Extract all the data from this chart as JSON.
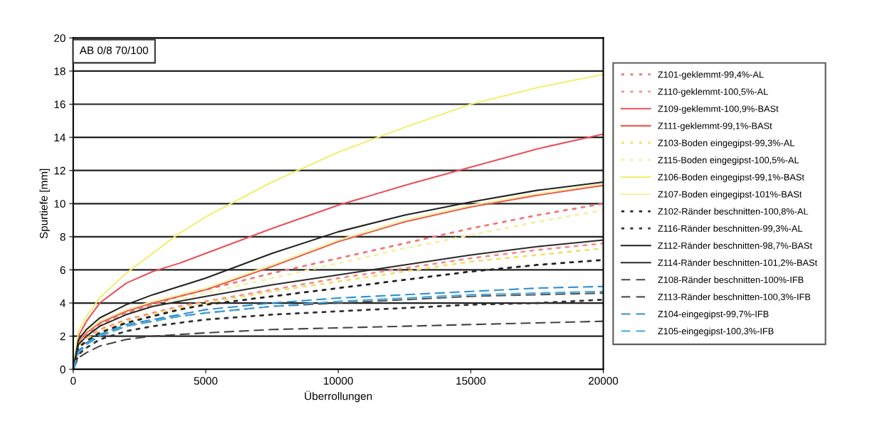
{
  "chart_data": {
    "type": "line",
    "xlabel": "Überrollungen",
    "ylabel": "Spurtiefe [mm]",
    "annotations": [
      "AB 0/8 70/100"
    ],
    "x": [
      0,
      200,
      500,
      1000,
      2000,
      3000,
      4000,
      5000,
      7500,
      10000,
      12500,
      15000,
      17500,
      20000
    ],
    "xlim": [
      0,
      20000
    ],
    "xticks": [
      0,
      5000,
      10000,
      15000,
      20000
    ],
    "ylim": [
      0,
      20
    ],
    "yticks": [
      0,
      2,
      4,
      6,
      8,
      10,
      12,
      14,
      16,
      18,
      20
    ],
    "grid": "y",
    "legend": "right",
    "marker": "none",
    "series": [
      {
        "name": "Z101-geklemmt-99,4%-AL",
        "color": "#f07878",
        "line_style": "dotted",
        "values": [
          0,
          1.6,
          2.1,
          2.7,
          3.4,
          3.9,
          4.4,
          4.8,
          5.8,
          6.7,
          7.6,
          8.5,
          9.3,
          10.0
        ]
      },
      {
        "name": "Z110-geklemmt-100,5%-AL",
        "color": "#f49090",
        "line_style": "dotted",
        "values": [
          0,
          1.4,
          1.9,
          2.4,
          3.0,
          3.4,
          3.8,
          4.1,
          4.8,
          5.5,
          6.1,
          6.7,
          7.2,
          7.6
        ]
      },
      {
        "name": "Z109-geklemmt-100,9%-BASt",
        "color": "#e85058",
        "line_style": "solid",
        "values": [
          0,
          2.0,
          2.9,
          4.0,
          5.2,
          5.9,
          6.4,
          7.0,
          8.5,
          9.9,
          11.1,
          12.2,
          13.3,
          14.2
        ]
      },
      {
        "name": "Z111-geklemmt-99,1%-BASt",
        "color": "#e86050",
        "line_style": "solid",
        "values": [
          0,
          1.7,
          2.2,
          2.8,
          3.5,
          4.0,
          4.4,
          4.8,
          6.2,
          7.7,
          8.9,
          9.8,
          10.5,
          11.1
        ]
      },
      {
        "name": "Z103-Boden eingegipst-99,3%-AL",
        "color": "#f0e070",
        "line_style": "dotted",
        "values": [
          0,
          1.3,
          1.8,
          2.3,
          2.9,
          3.3,
          3.7,
          4.0,
          4.7,
          5.3,
          5.9,
          6.5,
          6.9,
          7.3
        ]
      },
      {
        "name": "Z115-Boden eingegipst-100,5%-AL",
        "color": "#f4f0a0",
        "line_style": "dotted",
        "values": [
          0,
          1.5,
          2.0,
          2.6,
          3.3,
          3.8,
          4.2,
          4.6,
          5.5,
          6.4,
          7.3,
          8.1,
          8.9,
          9.6
        ]
      },
      {
        "name": "Z106-Boden eingegipst-99,1%-BASt",
        "color": "#f0f070",
        "line_style": "solid",
        "values": [
          0,
          2.3,
          3.2,
          4.3,
          5.8,
          7.0,
          8.2,
          9.2,
          11.3,
          13.1,
          14.6,
          16.0,
          17.0,
          17.8
        ]
      },
      {
        "name": "Z107-Boden eingegipst-101%-BASt",
        "color": "#f2f2a8",
        "line_style": "solid",
        "values": [
          0,
          1.8,
          2.3,
          2.9,
          3.6,
          4.1,
          4.5,
          4.9,
          6.3,
          7.8,
          9.0,
          9.9,
          10.6,
          11.2
        ]
      },
      {
        "name": "Z102-Ränder beschnitten-100,8%-AL",
        "color": "#222222",
        "line_style": "dotted",
        "values": [
          0,
          1.3,
          1.7,
          2.2,
          2.8,
          3.2,
          3.6,
          3.9,
          4.4,
          4.9,
          5.4,
          5.9,
          6.3,
          6.6
        ]
      },
      {
        "name": "Z116-Ränder beschnitten-99,3%-AL",
        "color": "#333333",
        "line_style": "dotted",
        "values": [
          0,
          0.9,
          1.3,
          1.8,
          2.3,
          2.6,
          2.8,
          3.0,
          3.3,
          3.5,
          3.7,
          3.9,
          4.0,
          4.2
        ]
      },
      {
        "name": "Z112-Ränder beschnitten-98,7%-BASt",
        "color": "#222222",
        "line_style": "solid",
        "values": [
          0,
          1.8,
          2.4,
          3.1,
          3.9,
          4.5,
          5.0,
          5.5,
          7.0,
          8.3,
          9.3,
          10.1,
          10.8,
          11.3
        ]
      },
      {
        "name": "Z114-Ränder beschnitten-101,2%-BASt",
        "color": "#2a2a2a",
        "line_style": "solid",
        "values": [
          0,
          1.5,
          2.0,
          2.6,
          3.3,
          3.8,
          4.1,
          4.4,
          5.1,
          5.7,
          6.3,
          6.9,
          7.4,
          7.8
        ]
      },
      {
        "name": "Z108-Ränder beschnitten-100%-IFB",
        "color": "#444444",
        "line_style": "dashed",
        "values": [
          0,
          0.7,
          1.0,
          1.4,
          1.8,
          2.0,
          2.1,
          2.2,
          2.4,
          2.5,
          2.6,
          2.7,
          2.8,
          2.9
        ]
      },
      {
        "name": "Z113-Ränder beschnitten-100,3%-IFB",
        "color": "#555555",
        "line_style": "dashed",
        "values": [
          0,
          1.0,
          1.5,
          2.0,
          2.6,
          2.9,
          3.2,
          3.4,
          3.8,
          4.0,
          4.2,
          4.4,
          4.5,
          4.6
        ]
      },
      {
        "name": "Z104-eingegipst-99,7%-IFB",
        "color": "#3090d0",
        "line_style": "dashed",
        "values": [
          0,
          1.1,
          1.6,
          2.1,
          2.7,
          3.0,
          3.3,
          3.6,
          4.0,
          4.3,
          4.5,
          4.7,
          4.9,
          5.0
        ]
      },
      {
        "name": "Z105-eingegipst-100,3%-IFB",
        "color": "#40a8e0",
        "line_style": "dashed",
        "values": [
          0,
          1.0,
          1.5,
          2.0,
          2.6,
          2.9,
          3.2,
          3.4,
          3.8,
          4.1,
          4.3,
          4.5,
          4.6,
          4.7
        ]
      }
    ]
  }
}
